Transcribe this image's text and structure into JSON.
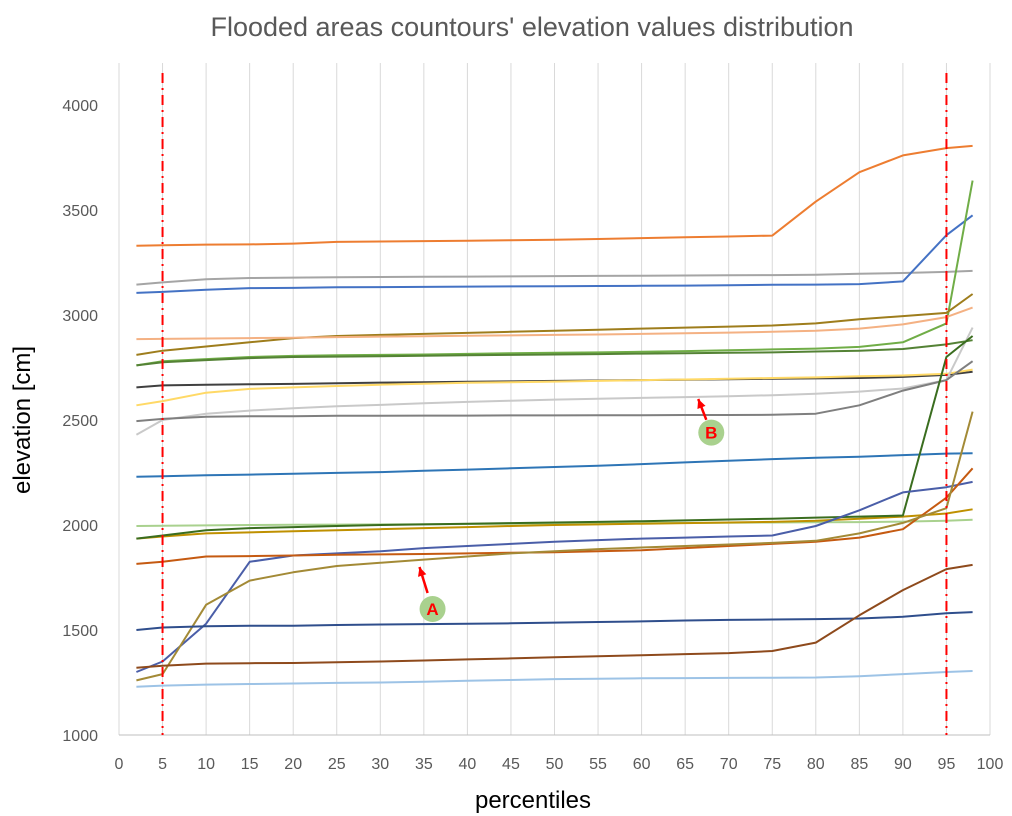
{
  "chart_data": {
    "type": "line",
    "title": "Flooded areas countours' elevation values distribution",
    "xlabel": "percentiles",
    "ylabel": "elevation [cm]",
    "xlim": [
      0,
      100
    ],
    "ylim": [
      1000,
      4200
    ],
    "xticks": [
      0,
      5,
      10,
      15,
      20,
      25,
      30,
      35,
      40,
      45,
      50,
      55,
      60,
      65,
      70,
      75,
      80,
      85,
      90,
      95,
      100
    ],
    "yticks": [
      1000,
      1500,
      2000,
      2500,
      3000,
      3500,
      4000
    ],
    "grid": "vertical",
    "legend": "none",
    "x": [
      2,
      5,
      10,
      15,
      20,
      25,
      30,
      35,
      40,
      45,
      50,
      55,
      60,
      65,
      70,
      75,
      80,
      85,
      90,
      95,
      98
    ],
    "series": [
      {
        "color": "#ed7d31",
        "values": [
          3330,
          3332,
          3335,
          3336,
          3340,
          3348,
          3350,
          3352,
          3354,
          3356,
          3358,
          3362,
          3366,
          3370,
          3374,
          3378,
          3540,
          3680,
          3760,
          3795,
          3805
        ]
      },
      {
        "color": "#a5a5a5",
        "values": [
          3145,
          3155,
          3170,
          3176,
          3178,
          3180,
          3181,
          3182,
          3183,
          3184,
          3185,
          3186,
          3187,
          3188,
          3189,
          3190,
          3192,
          3196,
          3200,
          3205,
          3210
        ]
      },
      {
        "color": "#4472c4",
        "values": [
          3105,
          3110,
          3120,
          3128,
          3129,
          3132,
          3133,
          3134,
          3135,
          3136,
          3137,
          3138,
          3139,
          3140,
          3142,
          3144,
          3145,
          3147,
          3160,
          3380,
          3475
        ]
      },
      {
        "color": "#70ad47",
        "values": [
          2760,
          2780,
          2790,
          2800,
          2805,
          2808,
          2810,
          2812,
          2815,
          2818,
          2820,
          2822,
          2825,
          2828,
          2832,
          2836,
          2840,
          2848,
          2870,
          2960,
          3640
        ]
      },
      {
        "color": "#9e7d1c",
        "values": [
          2810,
          2830,
          2850,
          2870,
          2890,
          2900,
          2905,
          2910,
          2915,
          2920,
          2925,
          2930,
          2935,
          2940,
          2945,
          2950,
          2960,
          2980,
          2995,
          3010,
          3100
        ]
      },
      {
        "color": "#f4b183",
        "values": [
          2885,
          2886,
          2888,
          2890,
          2892,
          2895,
          2897,
          2899,
          2901,
          2903,
          2905,
          2907,
          2910,
          2913,
          2916,
          2920,
          2925,
          2935,
          2955,
          2990,
          3035
        ]
      },
      {
        "color": "#548235",
        "values": [
          2760,
          2775,
          2785,
          2795,
          2800,
          2802,
          2804,
          2806,
          2808,
          2810,
          2812,
          2814,
          2816,
          2818,
          2820,
          2822,
          2826,
          2830,
          2838,
          2860,
          2880
        ]
      },
      {
        "color": "#404040",
        "values": [
          2655,
          2665,
          2668,
          2670,
          2672,
          2675,
          2678,
          2680,
          2682,
          2684,
          2686,
          2688,
          2690,
          2692,
          2694,
          2696,
          2698,
          2700,
          2705,
          2715,
          2730
        ]
      },
      {
        "color": "#ffd966",
        "values": [
          2570,
          2590,
          2630,
          2648,
          2655,
          2662,
          2668,
          2673,
          2677,
          2680,
          2683,
          2686,
          2690,
          2693,
          2696,
          2700,
          2703,
          2708,
          2712,
          2720,
          2740
        ]
      },
      {
        "color": "#c9c9c9",
        "values": [
          2430,
          2500,
          2530,
          2545,
          2556,
          2565,
          2572,
          2580,
          2586,
          2592,
          2597,
          2601,
          2605,
          2609,
          2613,
          2618,
          2625,
          2635,
          2650,
          2690,
          2940
        ]
      },
      {
        "color": "#7f7f7f",
        "values": [
          2495,
          2505,
          2515,
          2518,
          2518,
          2520,
          2520,
          2521,
          2521,
          2522,
          2522,
          2523,
          2523,
          2524,
          2524,
          2525,
          2530,
          2570,
          2640,
          2690,
          2780
        ]
      },
      {
        "color": "#2e75b6",
        "values": [
          2230,
          2232,
          2237,
          2240,
          2244,
          2248,
          2252,
          2258,
          2264,
          2270,
          2276,
          2282,
          2290,
          2298,
          2306,
          2314,
          2320,
          2325,
          2333,
          2340,
          2342
        ]
      },
      {
        "color": "#a9d18e",
        "values": [
          1995,
          1996,
          1998,
          2000,
          2001,
          2002,
          2003,
          2004,
          2005,
          2006,
          2007,
          2008,
          2009,
          2010,
          2011,
          2012,
          2013,
          2014,
          2016,
          2020,
          2025
        ]
      },
      {
        "color": "#bf9000",
        "values": [
          1935,
          1945,
          1960,
          1965,
          1970,
          1975,
          1980,
          1985,
          1990,
          1995,
          2000,
          2003,
          2006,
          2009,
          2012,
          2015,
          2020,
          2030,
          2040,
          2055,
          2075
        ]
      },
      {
        "color": "#3a6d1f",
        "values": [
          1935,
          1950,
          1975,
          1985,
          1990,
          1995,
          2000,
          2003,
          2006,
          2009,
          2012,
          2015,
          2018,
          2022,
          2026,
          2030,
          2035,
          2040,
          2045,
          2800,
          2900
        ]
      },
      {
        "color": "#4a5ea8",
        "values": [
          1300,
          1350,
          1530,
          1825,
          1855,
          1865,
          1875,
          1890,
          1900,
          1910,
          1920,
          1928,
          1935,
          1940,
          1945,
          1950,
          1995,
          2070,
          2155,
          2180,
          2205
        ]
      },
      {
        "color": "#c55a11",
        "values": [
          1815,
          1825,
          1850,
          1852,
          1855,
          1858,
          1860,
          1862,
          1865,
          1868,
          1870,
          1875,
          1880,
          1890,
          1900,
          1910,
          1920,
          1940,
          1980,
          2130,
          2270
        ]
      },
      {
        "color": "#a38a36",
        "values": [
          1260,
          1290,
          1620,
          1735,
          1775,
          1805,
          1820,
          1835,
          1850,
          1865,
          1875,
          1885,
          1893,
          1900,
          1907,
          1915,
          1925,
          1960,
          2010,
          2080,
          2540
        ]
      },
      {
        "color": "#2f4e8c",
        "values": [
          1500,
          1512,
          1518,
          1520,
          1520,
          1524,
          1526,
          1528,
          1530,
          1532,
          1535,
          1538,
          1541,
          1545,
          1548,
          1550,
          1552,
          1555,
          1563,
          1580,
          1585
        ]
      },
      {
        "color": "#8e4a1c",
        "values": [
          1320,
          1330,
          1340,
          1342,
          1343,
          1346,
          1350,
          1355,
          1360,
          1365,
          1370,
          1375,
          1380,
          1385,
          1390,
          1400,
          1440,
          1570,
          1690,
          1790,
          1810
        ]
      },
      {
        "color": "#9dc3e6",
        "values": [
          1230,
          1235,
          1240,
          1243,
          1245,
          1248,
          1250,
          1254,
          1258,
          1262,
          1266,
          1268,
          1270,
          1271,
          1272,
          1273,
          1274,
          1280,
          1290,
          1300,
          1305
        ]
      }
    ],
    "vertical_markers": [
      {
        "x": 5,
        "color": "#ff0000",
        "style": "dash-dot"
      },
      {
        "x": 95,
        "color": "#ff0000",
        "style": "dash-dot"
      }
    ],
    "annotations": [
      {
        "label": "A",
        "x": 36,
        "y": 1600,
        "arrow_to_x": 34.5,
        "arrow_to_y": 1800
      },
      {
        "label": "B",
        "x": 68,
        "y": 2440,
        "arrow_to_x": 66.5,
        "arrow_to_y": 2600
      }
    ]
  }
}
